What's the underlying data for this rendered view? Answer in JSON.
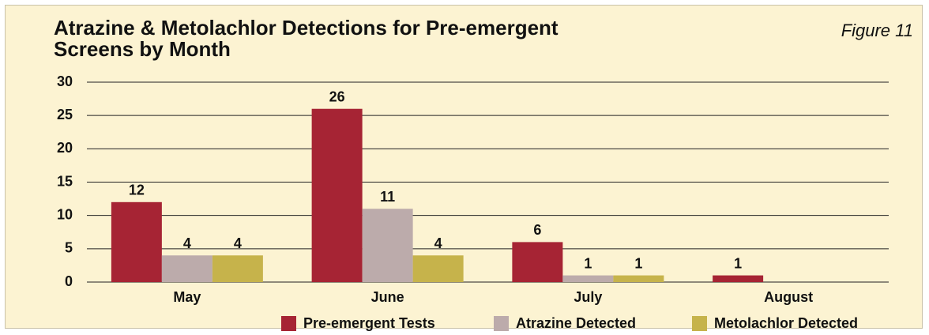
{
  "chart_data": {
    "type": "bar",
    "title": "Atrazine & Metolachlor Detections for Pre-emergent Screens by Month",
    "annotation": "Figure 11",
    "categories": [
      "May",
      "June",
      "July",
      "August"
    ],
    "series": [
      {
        "name": "Pre-emergent Tests",
        "color": "#a62434",
        "values": [
          12,
          26,
          6,
          1
        ]
      },
      {
        "name": "Atrazine Detected",
        "color": "#bcabab",
        "values": [
          4,
          11,
          1,
          null
        ]
      },
      {
        "name": "Metolachlor Detected",
        "color": "#c6b34b",
        "values": [
          4,
          4,
          1,
          null
        ]
      }
    ],
    "ylim": [
      0,
      30
    ],
    "yticks": [
      0,
      5,
      10,
      15,
      20,
      25,
      30
    ],
    "grid": true,
    "legend": "bottom-right"
  }
}
